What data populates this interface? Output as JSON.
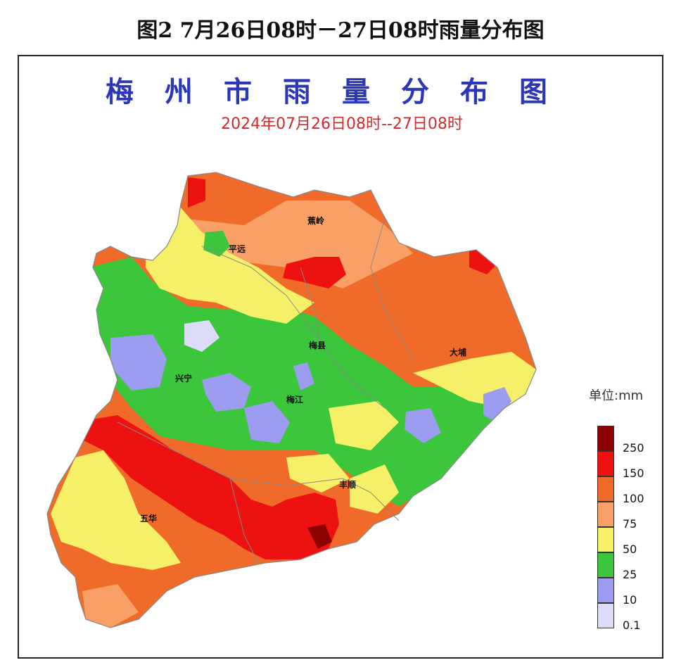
{
  "caption": "图2 7月26日08时－27日08时雨量分布图",
  "map": {
    "title": "梅州市雨量分布图",
    "subtitle": "2024年07月26日08时--27日08时",
    "places": [
      {
        "id": "jiaoling",
        "name": "蕉岭"
      },
      {
        "id": "pingyuan",
        "name": "平远"
      },
      {
        "id": "meixian",
        "name": "梅县"
      },
      {
        "id": "dabu",
        "name": "大埔"
      },
      {
        "id": "xingning",
        "name": "兴宁"
      },
      {
        "id": "meijiang",
        "name": "梅江"
      },
      {
        "id": "fengshun",
        "name": "丰顺"
      },
      {
        "id": "wuhua",
        "name": "五华"
      }
    ]
  },
  "legend": {
    "unit_label": "单位:mm",
    "items": [
      {
        "label": "250",
        "color": "#8b0000"
      },
      {
        "label": "150",
        "color": "#ee1111"
      },
      {
        "label": "100",
        "color": "#f06a2a"
      },
      {
        "label": "75",
        "color": "#f8a066"
      },
      {
        "label": "50",
        "color": "#f5f067"
      },
      {
        "label": "25",
        "color": "#3bc63b"
      },
      {
        "label": "10",
        "color": "#9c9cf0"
      },
      {
        "label": "0.1",
        "color": "#dcdcf8"
      }
    ]
  }
}
